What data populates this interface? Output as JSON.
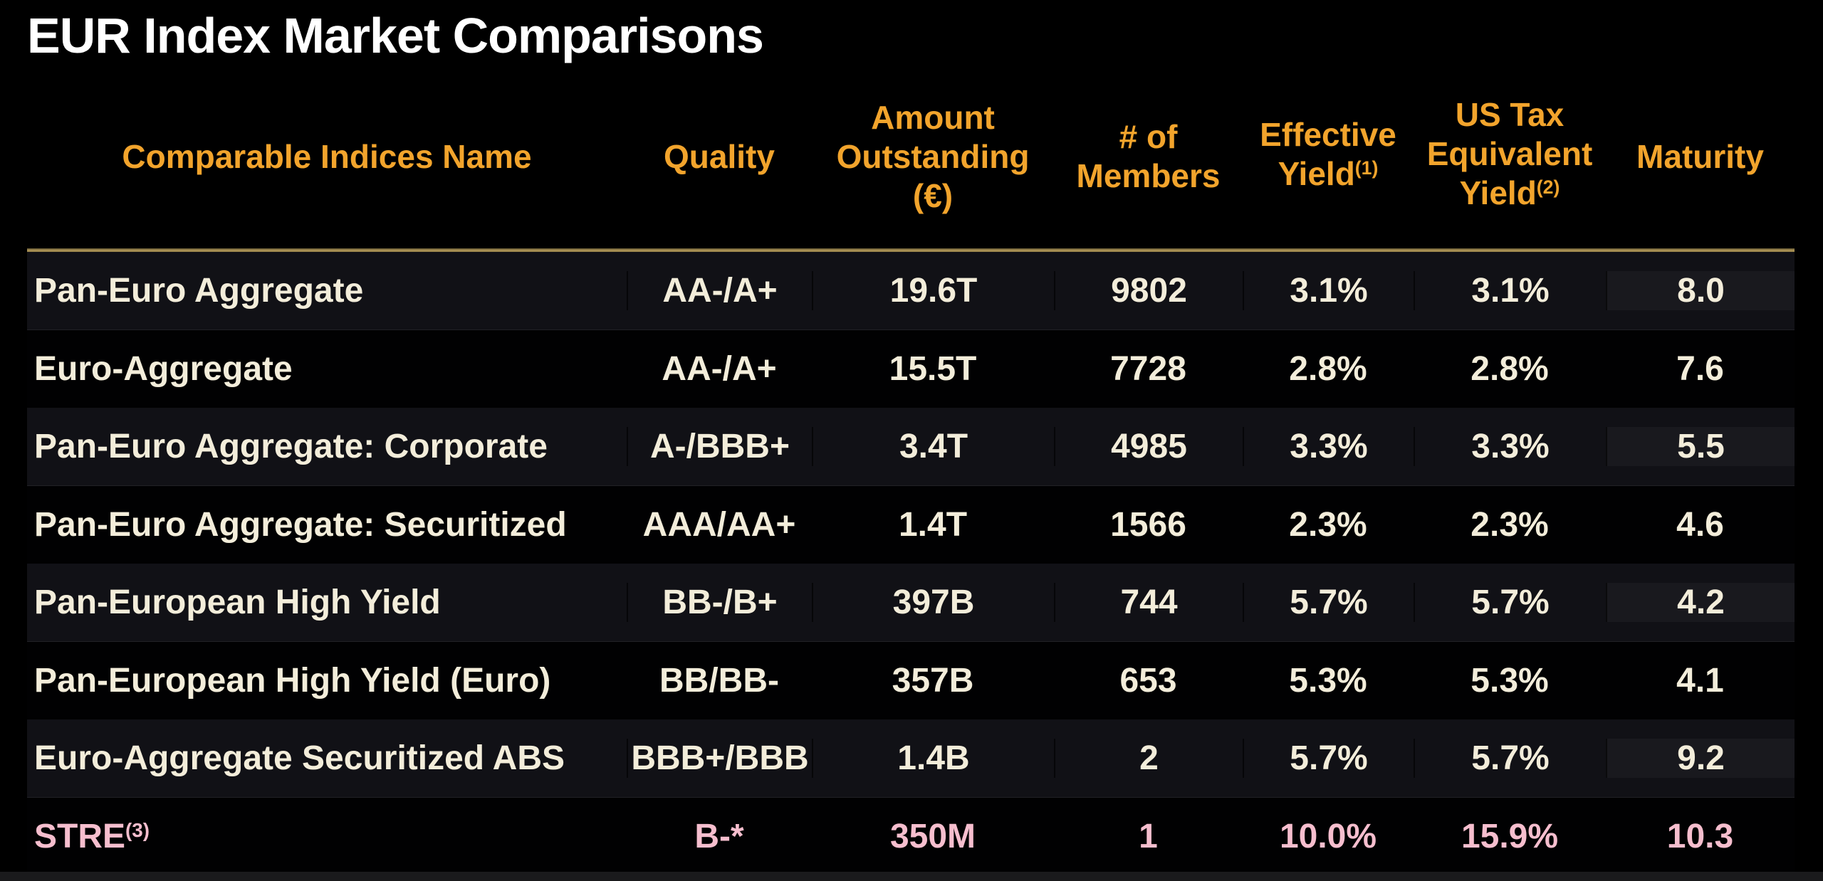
{
  "title": "EUR Index Market Comparisons",
  "colors": {
    "background": "#000000",
    "header_accent": "#F2A42C",
    "row_text": "#F3EDDA",
    "highlight_text": "#F6BECE",
    "divider_gold": "#A38E52",
    "odd_row_bg": "#111116",
    "even_row_bg": "#010102"
  },
  "table": {
    "columns": [
      {
        "id": "name",
        "lines": [
          "Comparable Indices Name"
        ]
      },
      {
        "id": "quality",
        "lines": [
          "Quality"
        ]
      },
      {
        "id": "amount",
        "lines": [
          "Amount",
          "Outstanding",
          "(€)"
        ]
      },
      {
        "id": "members",
        "lines": [
          "# of",
          "Members"
        ]
      },
      {
        "id": "eff_yield",
        "lines": [
          "Effective",
          "Yield"
        ],
        "sup": "(1)"
      },
      {
        "id": "tax_yield",
        "lines": [
          "US Tax",
          "Equivalent",
          "Yield"
        ],
        "sup": "(2)"
      },
      {
        "id": "maturity",
        "lines": [
          "Maturity"
        ]
      }
    ],
    "rows": [
      {
        "name": "Pan-Euro Aggregate",
        "quality": "AA-/A+",
        "amount": "19.6T",
        "members": "9802",
        "eff_yield": "3.1%",
        "tax_yield": "3.1%",
        "maturity": "8.0"
      },
      {
        "name": "Euro-Aggregate",
        "quality": "AA-/A+",
        "amount": "15.5T",
        "members": "7728",
        "eff_yield": "2.8%",
        "tax_yield": "2.8%",
        "maturity": "7.6"
      },
      {
        "name": "Pan-Euro Aggregate: Corporate",
        "quality": "A-/BBB+",
        "amount": "3.4T",
        "members": "4985",
        "eff_yield": "3.3%",
        "tax_yield": "3.3%",
        "maturity": "5.5"
      },
      {
        "name": "Pan-Euro Aggregate: Securitized",
        "quality": "AAA/AA+",
        "amount": "1.4T",
        "members": "1566",
        "eff_yield": "2.3%",
        "tax_yield": "2.3%",
        "maturity": "4.6"
      },
      {
        "name": "Pan-European High Yield",
        "quality": "BB-/B+",
        "amount": "397B",
        "members": "744",
        "eff_yield": "5.7%",
        "tax_yield": "5.7%",
        "maturity": "4.2"
      },
      {
        "name": "Pan-European High Yield (Euro)",
        "quality": "BB/BB-",
        "amount": "357B",
        "members": "653",
        "eff_yield": "5.3%",
        "tax_yield": "5.3%",
        "maturity": "4.1"
      },
      {
        "name": "Euro-Aggregate Securitized ABS",
        "quality": "BBB+/BBB",
        "amount": "1.4B",
        "members": "2",
        "eff_yield": "5.7%",
        "tax_yield": "5.7%",
        "maturity": "9.2"
      },
      {
        "name": "STRE",
        "name_sup": "(3)",
        "quality": "B-*",
        "amount": "350M",
        "members": "1",
        "eff_yield": "10.0%",
        "tax_yield": "15.9%",
        "maturity": "10.3",
        "highlight": true
      }
    ]
  }
}
